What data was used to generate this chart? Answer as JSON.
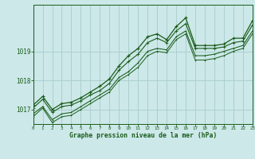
{
  "title": "Graphe pression niveau de la mer (hPa)",
  "bg_color": "#cce8e8",
  "line_color": "#1a5c1a",
  "grid_color": "#a8cccc",
  "xmin": 0,
  "xmax": 23,
  "ymin": 1016.5,
  "ymax": 1020.6,
  "yticks": [
    1017,
    1018,
    1019
  ],
  "xticks": [
    0,
    1,
    2,
    3,
    4,
    5,
    6,
    7,
    8,
    9,
    10,
    11,
    12,
    13,
    14,
    15,
    16,
    17,
    18,
    19,
    20,
    21,
    22,
    23
  ],
  "series": [
    [
      1017.15,
      1017.45,
      1017.0,
      1017.2,
      1017.25,
      1017.4,
      1017.6,
      1017.8,
      1018.05,
      1018.5,
      1018.85,
      1019.1,
      1019.5,
      1019.6,
      1019.4,
      1019.85,
      1020.15,
      1019.2,
      1019.2,
      1019.2,
      1019.25,
      1019.45,
      1019.45,
      1020.05
    ],
    [
      1017.05,
      1017.35,
      1016.9,
      1017.1,
      1017.15,
      1017.3,
      1017.5,
      1017.65,
      1017.9,
      1018.35,
      1018.65,
      1018.9,
      1019.3,
      1019.45,
      1019.3,
      1019.7,
      1019.95,
      1019.1,
      1019.1,
      1019.1,
      1019.15,
      1019.3,
      1019.35,
      1019.9
    ],
    [
      1016.85,
      1017.1,
      1016.65,
      1016.85,
      1016.9,
      1017.1,
      1017.3,
      1017.5,
      1017.7,
      1018.1,
      1018.3,
      1018.6,
      1019.0,
      1019.1,
      1019.05,
      1019.5,
      1019.7,
      1018.85,
      1018.85,
      1018.9,
      1019.0,
      1019.1,
      1019.2,
      1019.7
    ],
    [
      1016.75,
      1017.05,
      1016.55,
      1016.75,
      1016.8,
      1017.0,
      1017.2,
      1017.4,
      1017.6,
      1018.0,
      1018.2,
      1018.45,
      1018.85,
      1019.0,
      1018.95,
      1019.4,
      1019.6,
      1018.7,
      1018.7,
      1018.75,
      1018.85,
      1019.0,
      1019.1,
      1019.6
    ]
  ]
}
